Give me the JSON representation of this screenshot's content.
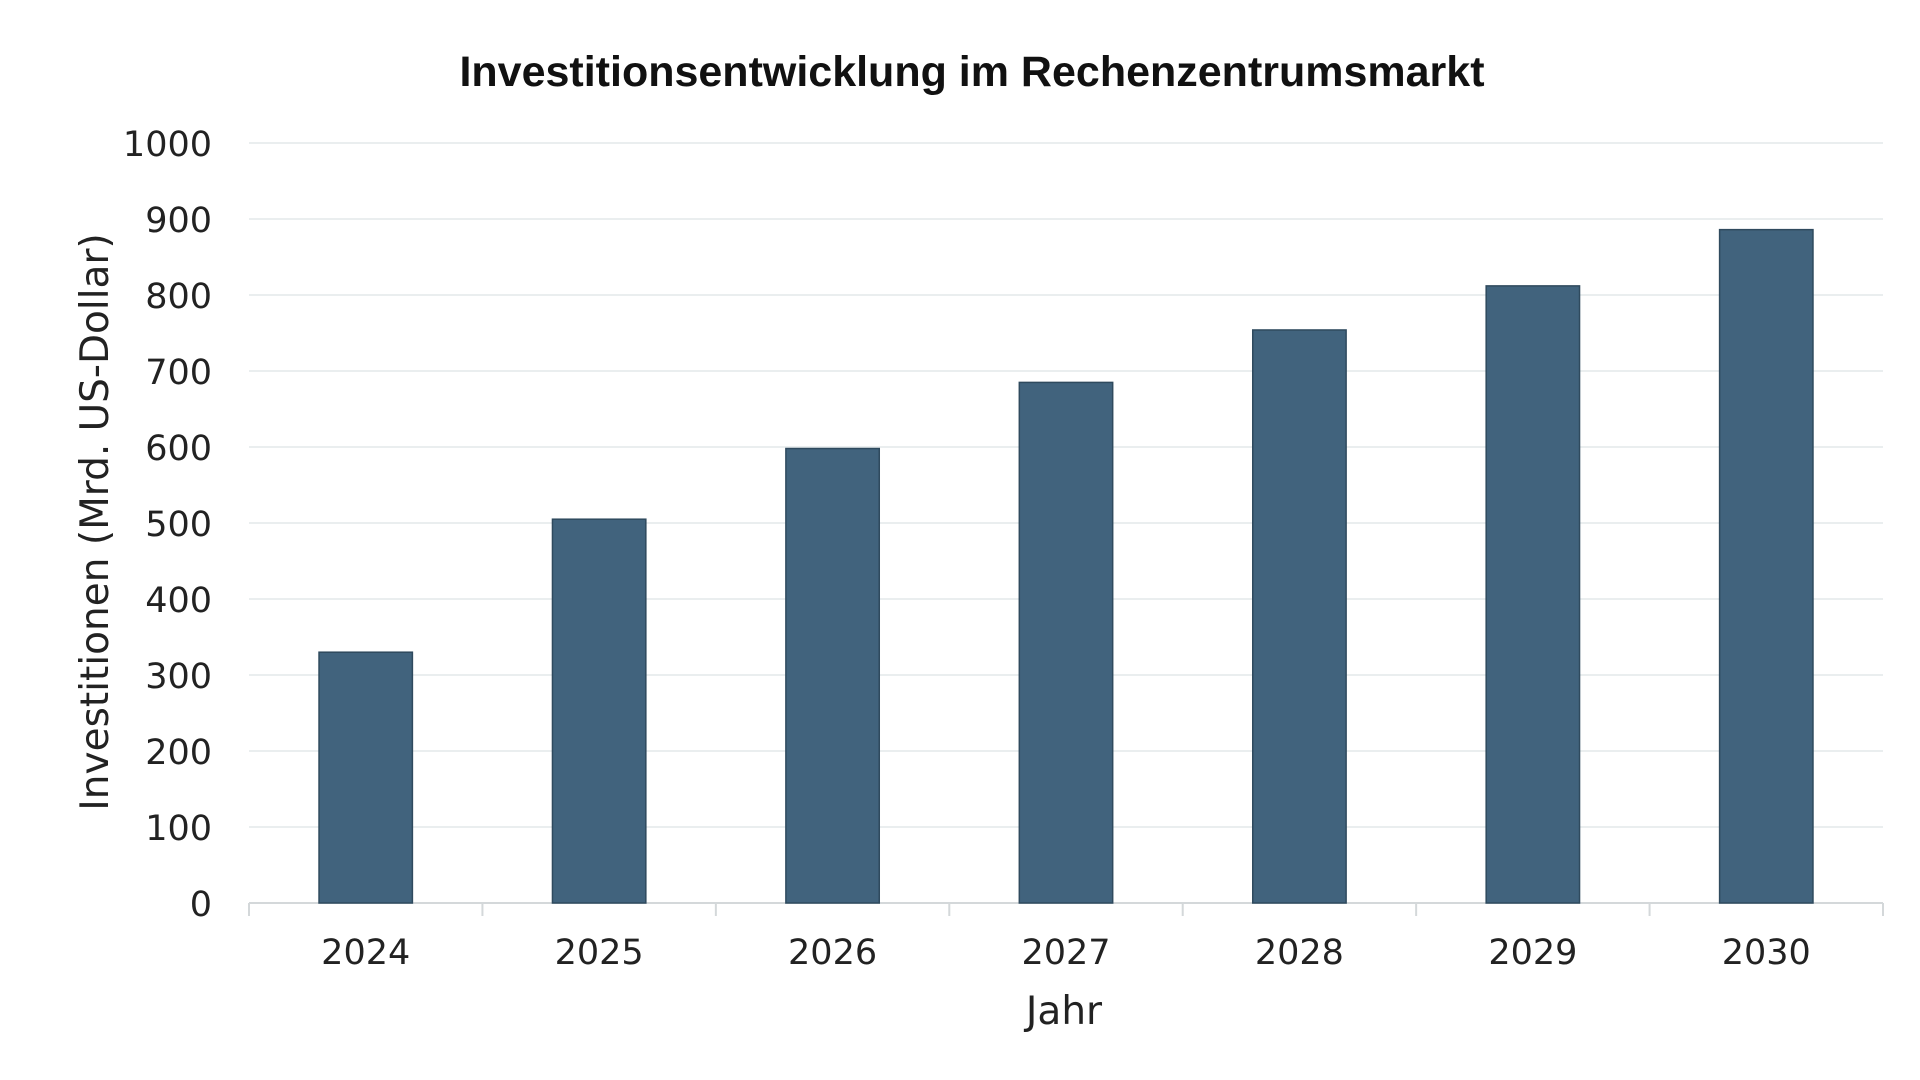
{
  "chart_data": {
    "type": "bar",
    "title": "Investitionsentwicklung im Rechenzentrumsmarkt",
    "xlabel": "Jahr",
    "ylabel": "Investitionen (Mrd. US-Dollar)",
    "categories": [
      "2024",
      "2025",
      "2026",
      "2027",
      "2028",
      "2029",
      "2030"
    ],
    "values": [
      330,
      505,
      598,
      685,
      754,
      812,
      886
    ],
    "ylim": [
      0,
      1000
    ],
    "yticks": [
      0,
      100,
      200,
      300,
      400,
      500,
      600,
      700,
      800,
      900,
      1000
    ],
    "grid": true,
    "legend": "none",
    "colors": {
      "bar": "#41637d",
      "bar_edge": "#2f4a5e",
      "grid": "#e3e8ea",
      "axis": "#d4d8da"
    }
  }
}
